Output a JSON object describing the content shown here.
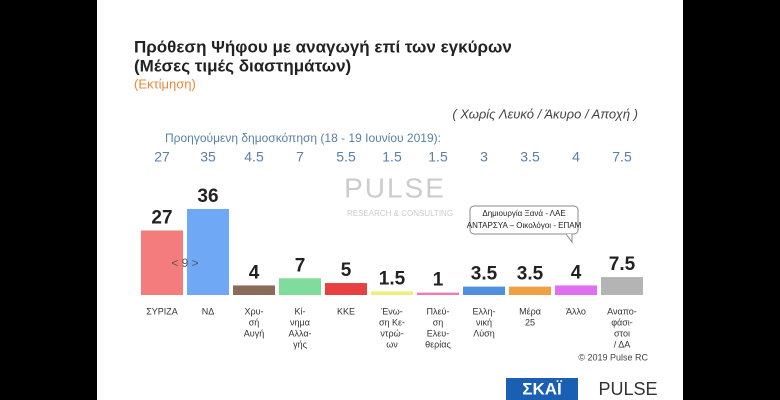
{
  "chart_data": {
    "type": "bar",
    "title": [
      "Πρόθεση Ψήφου με αναγωγή επί των εγκύρων",
      "(Μέσες τιμές διαστημάτων)"
    ],
    "subtitle": "(Εκτίμηση)",
    "note": "( Χωρίς Λευκό / Άκυρο / Αποχή )",
    "previous_label": "Προηγούμενη δημοσκόπηση (18 - 19 Ιουνίου 2019):",
    "categories": [
      [
        "ΣΥΡΙΖΑ"
      ],
      [
        "ΝΔ"
      ],
      [
        "Χρυ-",
        "σή",
        "Αυγή"
      ],
      [
        "Κί-",
        "νημα",
        "Αλλα-",
        "γής"
      ],
      [
        "ΚΚΕ"
      ],
      [
        "Ένω-",
        "ση Κε-",
        "ντρώ-",
        "ων"
      ],
      [
        "Πλεύ-",
        "ση",
        "Ελευ-",
        "θερίας"
      ],
      [
        "Ελλη-",
        "νική",
        "Λύση"
      ],
      [
        "Μέρα",
        "25"
      ],
      [
        "Άλλο"
      ],
      [
        "Αναπο-",
        "φάσι-",
        "στοι",
        "/ ΔΑ"
      ]
    ],
    "values": [
      27,
      36,
      4,
      7,
      5,
      1.5,
      1,
      3.5,
      3.5,
      4,
      7.5
    ],
    "previous": [
      27,
      35,
      4.5,
      7,
      5.5,
      1.5,
      1.5,
      3,
      3.5,
      4,
      7.5
    ],
    "colors": [
      "#f47c7c",
      "#6fa8f5",
      "#8a6a5a",
      "#7fdc9a",
      "#e84040",
      "#eef07a",
      "#f07ab8",
      "#4f8fe0",
      "#f0a040",
      "#e070f0",
      "#b4b4b4"
    ],
    "annotation": [
      "Δημιουργία Ξανά - ΛΑΕ",
      "ΑΝΤΑΡΣΥΑ – Οικολόγοι - ΕΠΑΜ"
    ]
  },
  "watermark": [
    "PULSE",
    "RESEARCH & CONSULTING"
  ],
  "overlay": "< 9 >",
  "copyright": "© 2019 Pulse RC",
  "logos": [
    "ΣΚΑΪ",
    "PULSE"
  ]
}
